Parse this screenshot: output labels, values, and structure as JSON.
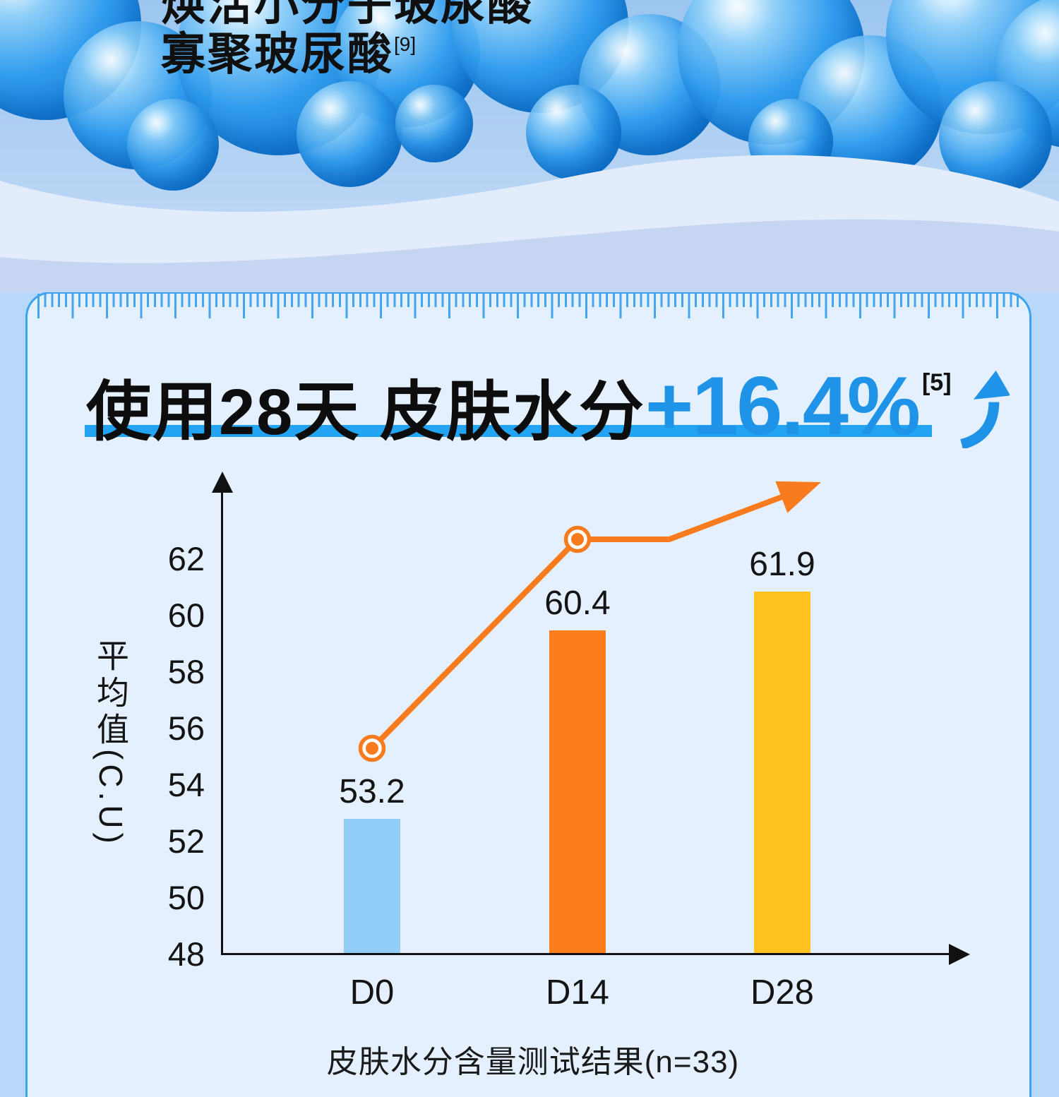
{
  "top_banner": {
    "line1": "焕活小分子玻尿酸",
    "line2": "寡聚玻尿酸",
    "line2_sup": "[9]"
  },
  "headline": {
    "prefix": "使用28天 皮肤水分",
    "highlight": "+16.4%",
    "sup": "[5]"
  },
  "chart_data": {
    "type": "bar",
    "title": "使用28天 皮肤水分+16.4%[5]",
    "categories": [
      "D0",
      "D14",
      "D28"
    ],
    "values": [
      53.2,
      60.4,
      61.9
    ],
    "value_labels": [
      "53.2",
      "60.4",
      "61.9"
    ],
    "bar_colors": [
      "#92CDF8",
      "#FB7D1B",
      "#FEC31E"
    ],
    "xlabel": "",
    "ylabel": "平均值(C.U)",
    "yticks": [
      62,
      60,
      58,
      56,
      54,
      52,
      50,
      48
    ],
    "ylim": [
      48,
      64
    ],
    "grid": false,
    "legend_position": "none",
    "caption": "皮肤水分含量测试结果(n=33)",
    "overlay_line": {
      "style": "rising-trend-arrow",
      "color": "#F87B1E",
      "marker_categories": [
        "D0",
        "D14"
      ],
      "marker_values_cu_est": [
        55.3,
        62.7
      ],
      "ends_with_arrow": true
    }
  },
  "colors": {
    "headline_highlight": "#1E93E8",
    "headline_underline": "#23A4F2",
    "card_border": "#3DA2EF",
    "card_background": "#E4F0FD",
    "page_background": "#B7D8F8",
    "axis": "#111111"
  }
}
